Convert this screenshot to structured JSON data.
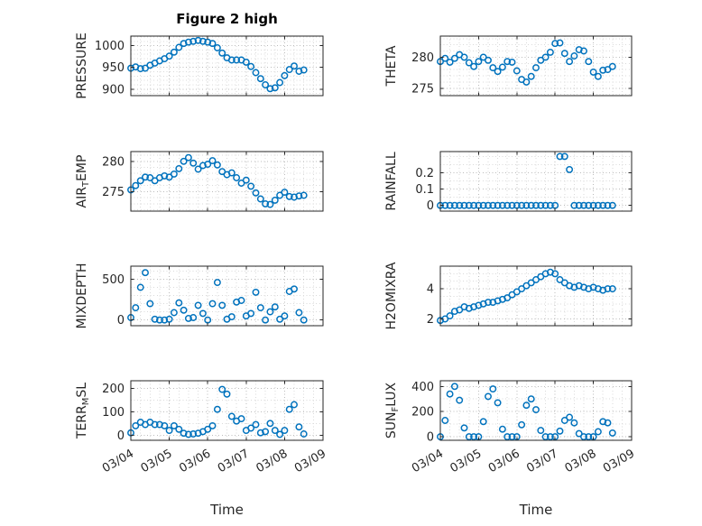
{
  "figure": {
    "title": "Figure 2 high",
    "xlabel": "Time",
    "x_ticks": [
      "03/04",
      "03/05",
      "03/06",
      "03/07",
      "03/08",
      "03/09"
    ],
    "x_tick_values": [
      0,
      1,
      2,
      3,
      4,
      5
    ],
    "xlim": [
      0,
      5
    ],
    "x_minor_step": 0.25
  },
  "colors": {
    "marker": "#0072BD",
    "axis": "#262626",
    "grid_major": "#bbbbbb",
    "grid_minor": "#dadada"
  },
  "chart_data": [
    {
      "name": "pressure",
      "type": "scatter",
      "ylabel": "PRESSURE",
      "y_ticks": [
        900,
        950,
        1000
      ],
      "ylim": [
        885,
        1022
      ],
      "y_minor_step": 10,
      "x_start": 0,
      "x_step": 0.125,
      "values": [
        948,
        951,
        947,
        948,
        955,
        960,
        965,
        970,
        976,
        985,
        996,
        1005,
        1008,
        1010,
        1012,
        1010,
        1008,
        1005,
        995,
        983,
        972,
        967,
        967,
        967,
        962,
        952,
        938,
        924,
        910,
        901,
        903,
        915,
        931,
        945,
        953,
        941,
        944
      ]
    },
    {
      "name": "theta",
      "type": "scatter",
      "ylabel": "THETA",
      "y_ticks": [
        275,
        280
      ],
      "ylim": [
        273.8,
        283.4
      ],
      "y_minor_step": 1,
      "x_start": 0,
      "x_step": 0.125,
      "values": [
        279.3,
        279.8,
        279.2,
        279.8,
        280.4,
        280,
        279.1,
        278.5,
        279.3,
        280,
        279.5,
        278.3,
        277.7,
        278.4,
        279.3,
        279.2,
        277.8,
        276.4,
        276,
        276.9,
        278.3,
        279.5,
        280,
        280.8,
        282.2,
        282.3,
        280.6,
        279.3,
        280.2,
        281.2,
        281,
        279.3,
        277.6,
        276.9,
        277.9,
        278,
        278.5
      ]
    },
    {
      "name": "airtemp",
      "type": "scatter",
      "ylabel": {
        "pre": "AIR",
        "sub": "T",
        "post": "EMP"
      },
      "y_ticks": [
        275,
        280
      ],
      "ylim": [
        271.8,
        281.6
      ],
      "y_minor_step": 1,
      "x_start": 0,
      "x_step": 0.125,
      "values": [
        275.3,
        276,
        276.8,
        277.4,
        277.3,
        276.8,
        277.3,
        277.6,
        277.4,
        277.9,
        278.8,
        280,
        280.6,
        279.7,
        278.7,
        279.3,
        279.5,
        280.1,
        279.4,
        278.3,
        277.8,
        278.1,
        277.3,
        276.4,
        276.9,
        275.9,
        274.8,
        273.8,
        273,
        272.9,
        273.6,
        274.4,
        274.9,
        274.2,
        274.1,
        274.3,
        274.4
      ]
    },
    {
      "name": "rainfall",
      "type": "scatter",
      "ylabel": "RAINFALL",
      "y_ticks": [
        0,
        0.1,
        0.2
      ],
      "ylim": [
        -0.035,
        0.33
      ],
      "y_minor_step": 0.05,
      "x_start": 0,
      "x_step": 0.125,
      "values": [
        0,
        0,
        0,
        0,
        0,
        0,
        0,
        0,
        0,
        0,
        0,
        0,
        0,
        0,
        0,
        0,
        0,
        0,
        0,
        0,
        0,
        0,
        0,
        0,
        0,
        0.3,
        0.3,
        0.22,
        0,
        0,
        0,
        0,
        0,
        0,
        0,
        0,
        0
      ]
    },
    {
      "name": "mixdepth",
      "type": "scatter",
      "ylabel": "MIXDEPTH",
      "y_ticks": [
        0,
        500
      ],
      "ylim": [
        -70,
        660
      ],
      "y_minor_step": 100,
      "x_start": 0,
      "x_step": 0.125,
      "values": [
        30,
        150,
        400,
        580,
        200,
        10,
        0,
        0,
        10,
        90,
        210,
        120,
        20,
        30,
        180,
        80,
        0,
        200,
        460,
        180,
        10,
        40,
        220,
        240,
        50,
        80,
        340,
        150,
        0,
        100,
        160,
        10,
        50,
        350,
        380,
        90,
        0
      ]
    },
    {
      "name": "h2omixra",
      "type": "scatter",
      "ylabel": "H2OMIXRA",
      "y_ticks": [
        2,
        4
      ],
      "ylim": [
        1.55,
        5.5
      ],
      "y_minor_step": 0.5,
      "x_start": 0,
      "x_step": 0.125,
      "values": [
        1.9,
        2,
        2.2,
        2.5,
        2.6,
        2.8,
        2.7,
        2.8,
        2.9,
        3,
        3.1,
        3.1,
        3.2,
        3.3,
        3.4,
        3.6,
        3.8,
        4,
        4.2,
        4.4,
        4.6,
        4.8,
        5,
        5.1,
        5,
        4.6,
        4.4,
        4.2,
        4.1,
        4.2,
        4.1,
        4,
        4.1,
        4,
        3.9,
        4,
        4
      ]
    },
    {
      "name": "terrmsl",
      "type": "scatter",
      "ylabel": {
        "pre": "TERR",
        "sub": "M",
        "post": "SL"
      },
      "y_ticks": [
        0,
        100,
        200
      ],
      "ylim": [
        -22,
        232
      ],
      "y_minor_step": 50,
      "x_start": 0,
      "x_step": 0.125,
      "values": [
        10,
        40,
        55,
        45,
        55,
        45,
        45,
        40,
        20,
        40,
        25,
        8,
        3,
        5,
        8,
        15,
        25,
        40,
        110,
        195,
        175,
        80,
        60,
        70,
        20,
        30,
        45,
        10,
        15,
        50,
        20,
        3,
        20,
        110,
        130,
        35,
        5
      ]
    },
    {
      "name": "sunflux",
      "type": "scatter",
      "ylabel": {
        "pre": "SUN",
        "sub": "F",
        "post": "LUX"
      },
      "y_ticks": [
        0,
        200,
        400
      ],
      "ylim": [
        -28,
        445
      ],
      "y_minor_step": 100,
      "x_start": 0,
      "x_step": 0.125,
      "values": [
        0,
        130,
        340,
        400,
        290,
        70,
        0,
        0,
        0,
        120,
        320,
        380,
        270,
        60,
        0,
        0,
        0,
        95,
        250,
        300,
        215,
        50,
        0,
        0,
        0,
        45,
        130,
        155,
        110,
        25,
        0,
        0,
        0,
        40,
        120,
        110,
        30
      ]
    }
  ]
}
